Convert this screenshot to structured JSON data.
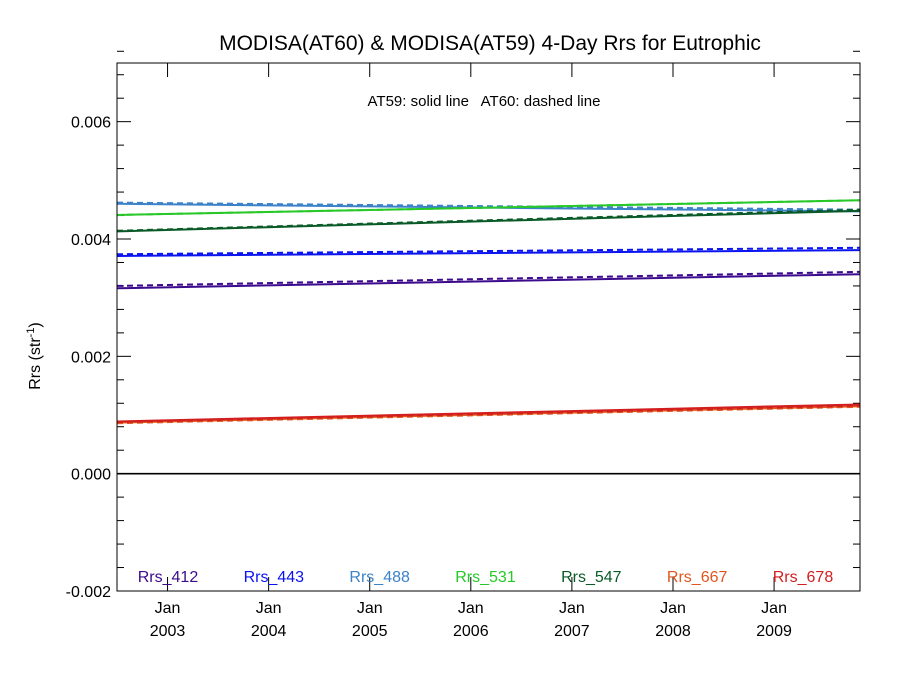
{
  "chart_data": {
    "type": "line",
    "title": "MODISA(AT60) & MODISA(AT59) 4-Day Rrs for Eutrophic",
    "annotation": "AT59: solid line   AT60: dashed line",
    "ylabel": "Rrs (str",
    "ylabel_sup": "-1",
    "ylabel_close": ")",
    "ylim": [
      -0.002,
      0.007
    ],
    "xlim": [
      2002.5,
      2009.85
    ],
    "yticks": [
      {
        "value": 0.006,
        "label": "0.006"
      },
      {
        "value": 0.004,
        "label": "0.004"
      },
      {
        "value": 0.002,
        "label": "0.002"
      },
      {
        "value": 0.0,
        "label": "0.000"
      },
      {
        "value": -0.002,
        "label": "-0.002"
      }
    ],
    "ytick_minor_step": 0.0004,
    "xticks": [
      {
        "value": 2003,
        "month": "Jan",
        "year": "2003"
      },
      {
        "value": 2004,
        "month": "Jan",
        "year": "2004"
      },
      {
        "value": 2005,
        "month": "Jan",
        "year": "2005"
      },
      {
        "value": 2006,
        "month": "Jan",
        "year": "2006"
      },
      {
        "value": 2007,
        "month": "Jan",
        "year": "2007"
      },
      {
        "value": 2008,
        "month": "Jan",
        "year": "2008"
      },
      {
        "value": 2009,
        "month": "Jan",
        "year": "2009"
      }
    ],
    "zero_line": 0,
    "series": [
      {
        "name": "Rrs_412",
        "color": "#3c0a8c",
        "at59": [
          0.00316,
          0.0034
        ],
        "at60": [
          0.0032,
          0.00344
        ]
      },
      {
        "name": "Rrs_443",
        "color": "#0a14f0",
        "at59": [
          0.00371,
          0.00381
        ],
        "at60": [
          0.00374,
          0.00385
        ]
      },
      {
        "name": "Rrs_488",
        "color": "#3c82c8",
        "at59": [
          0.0046,
          0.00447
        ],
        "at60": [
          0.00462,
          0.0045
        ]
      },
      {
        "name": "Rrs_531",
        "color": "#28c828",
        "at59": [
          0.00441,
          0.00466
        ],
        "at60": [
          0.00441,
          0.00466
        ]
      },
      {
        "name": "Rrs_547",
        "color": "#0a5a28",
        "at59": [
          0.00413,
          0.00448
        ],
        "at60": [
          0.00414,
          0.0045
        ]
      },
      {
        "name": "Rrs_667",
        "color": "#e0561e",
        "at59": [
          0.00087,
          0.00115
        ],
        "at60": [
          0.00086,
          0.00114
        ]
      },
      {
        "name": "Rrs_678",
        "color": "#d21e1e",
        "at59": [
          0.00089,
          0.00118
        ],
        "at60": [
          0.00088,
          0.00116
        ]
      }
    ]
  }
}
